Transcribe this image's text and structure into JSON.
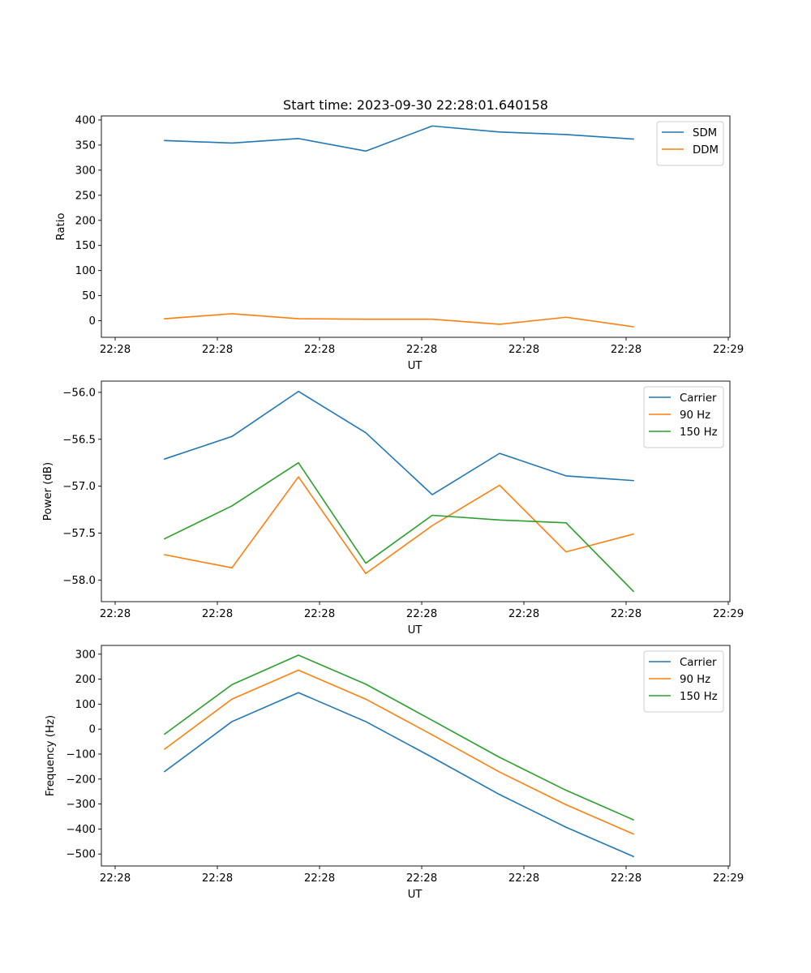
{
  "chart_data": [
    {
      "type": "line",
      "title": "Start time: 2023-09-30 22:28:01.640158",
      "xlabel": "UT",
      "ylabel": "Ratio",
      "x_tick_labels": [
        "22:28",
        "22:28",
        "22:28",
        "22:28",
        "22:28",
        "22:28",
        "22:29"
      ],
      "y_ticks": [
        0,
        50,
        100,
        150,
        200,
        250,
        300,
        350,
        400
      ],
      "y_tick_labels": [
        "0",
        "50",
        "100",
        "150",
        "200",
        "250",
        "300",
        "350",
        "400"
      ],
      "ylim": [
        -33,
        408
      ],
      "legend_position": "top-right",
      "grid": false,
      "series": [
        {
          "name": "SDM",
          "color": "#1f77b4",
          "values": [
            359,
            354,
            363,
            338,
            388,
            376,
            371,
            362
          ]
        },
        {
          "name": "DDM",
          "color": "#ff7f0e",
          "values": [
            4,
            14,
            4,
            3,
            3,
            -7,
            7,
            -12
          ]
        }
      ]
    },
    {
      "type": "line",
      "title": "",
      "xlabel": "UT",
      "ylabel": "Power (dB)",
      "x_tick_labels": [
        "22:28",
        "22:28",
        "22:28",
        "22:28",
        "22:28",
        "22:28",
        "22:29"
      ],
      "y_ticks": [
        -58.0,
        -57.5,
        -57.0,
        -56.5,
        -56.0
      ],
      "y_tick_labels": [
        "−58.0",
        "−57.5",
        "−57.0",
        "−56.5",
        "−56.0"
      ],
      "ylim": [
        -58.23,
        -55.88
      ],
      "legend_position": "top-right",
      "grid": false,
      "series": [
        {
          "name": "Carrier",
          "color": "#1f77b4",
          "values": [
            -56.71,
            -56.47,
            -55.99,
            -56.43,
            -57.09,
            -56.65,
            -56.89,
            -56.94
          ]
        },
        {
          "name": "90 Hz",
          "color": "#ff7f0e",
          "values": [
            -57.73,
            -57.87,
            -56.9,
            -57.93,
            -57.42,
            -56.99,
            -57.7,
            -57.51
          ]
        },
        {
          "name": "150 Hz",
          "color": "#2ca02c",
          "values": [
            -57.56,
            -57.21,
            -56.75,
            -57.82,
            -57.31,
            -57.36,
            -57.39,
            -58.12
          ]
        }
      ]
    },
    {
      "type": "line",
      "title": "",
      "xlabel": "UT",
      "ylabel": "Frequency (Hz)",
      "x_tick_labels": [
        "22:28",
        "22:28",
        "22:28",
        "22:28",
        "22:28",
        "22:28",
        "22:29"
      ],
      "y_ticks": [
        -500,
        -400,
        -300,
        -200,
        -100,
        0,
        100,
        200,
        300
      ],
      "y_tick_labels": [
        "−500",
        "−400",
        "−300",
        "−200",
        "−100",
        "0",
        "100",
        "200",
        "300"
      ],
      "ylim": [
        -548,
        335
      ],
      "legend_position": "top-right",
      "grid": false,
      "series": [
        {
          "name": "Carrier",
          "color": "#1f77b4",
          "values": [
            -170,
            30,
            146,
            30,
            -113,
            -262,
            -393,
            -510
          ]
        },
        {
          "name": "90 Hz",
          "color": "#ff7f0e",
          "values": [
            -80,
            120,
            236,
            120,
            -23,
            -172,
            -303,
            -420
          ]
        },
        {
          "name": "150 Hz",
          "color": "#2ca02c",
          "values": [
            -20,
            178,
            296,
            180,
            35,
            -113,
            -245,
            -363
          ]
        }
      ]
    }
  ]
}
